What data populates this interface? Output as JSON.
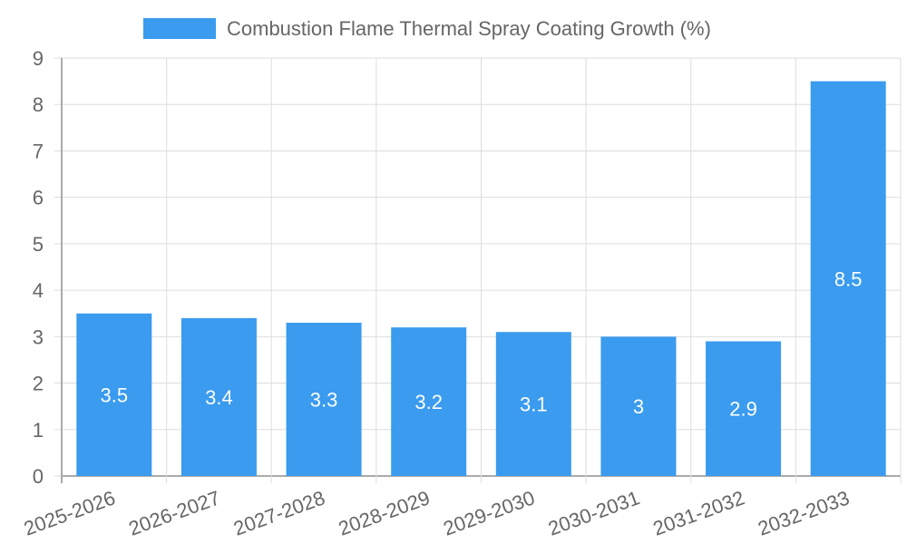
{
  "chart_data": {
    "type": "bar",
    "title": "",
    "legend": {
      "label": "Combustion Flame Thermal Spray Coating Growth (%)",
      "placement": "top"
    },
    "categories": [
      "2025-2026",
      "2026-2027",
      "2027-2028",
      "2028-2029",
      "2029-2030",
      "2030-2031",
      "2031-2032",
      "2032-2033"
    ],
    "values": [
      3.5,
      3.4,
      3.3,
      3.2,
      3.1,
      3,
      2.9,
      8.5
    ],
    "data_labels": [
      "3.5",
      "3.4",
      "3.3",
      "3.2",
      "3.1",
      "3",
      "2.9",
      "8.5"
    ],
    "y_ticks": [
      "0",
      "1",
      "2",
      "3",
      "4",
      "5",
      "6",
      "7",
      "8",
      "9"
    ],
    "ylim": [
      0,
      9
    ],
    "xlabel": "",
    "ylabel": "",
    "grid": true,
    "colors": {
      "bar": "#3a9bef",
      "text": "#666666",
      "grid": "#dddddd",
      "axis": "#aaaaaa"
    }
  }
}
